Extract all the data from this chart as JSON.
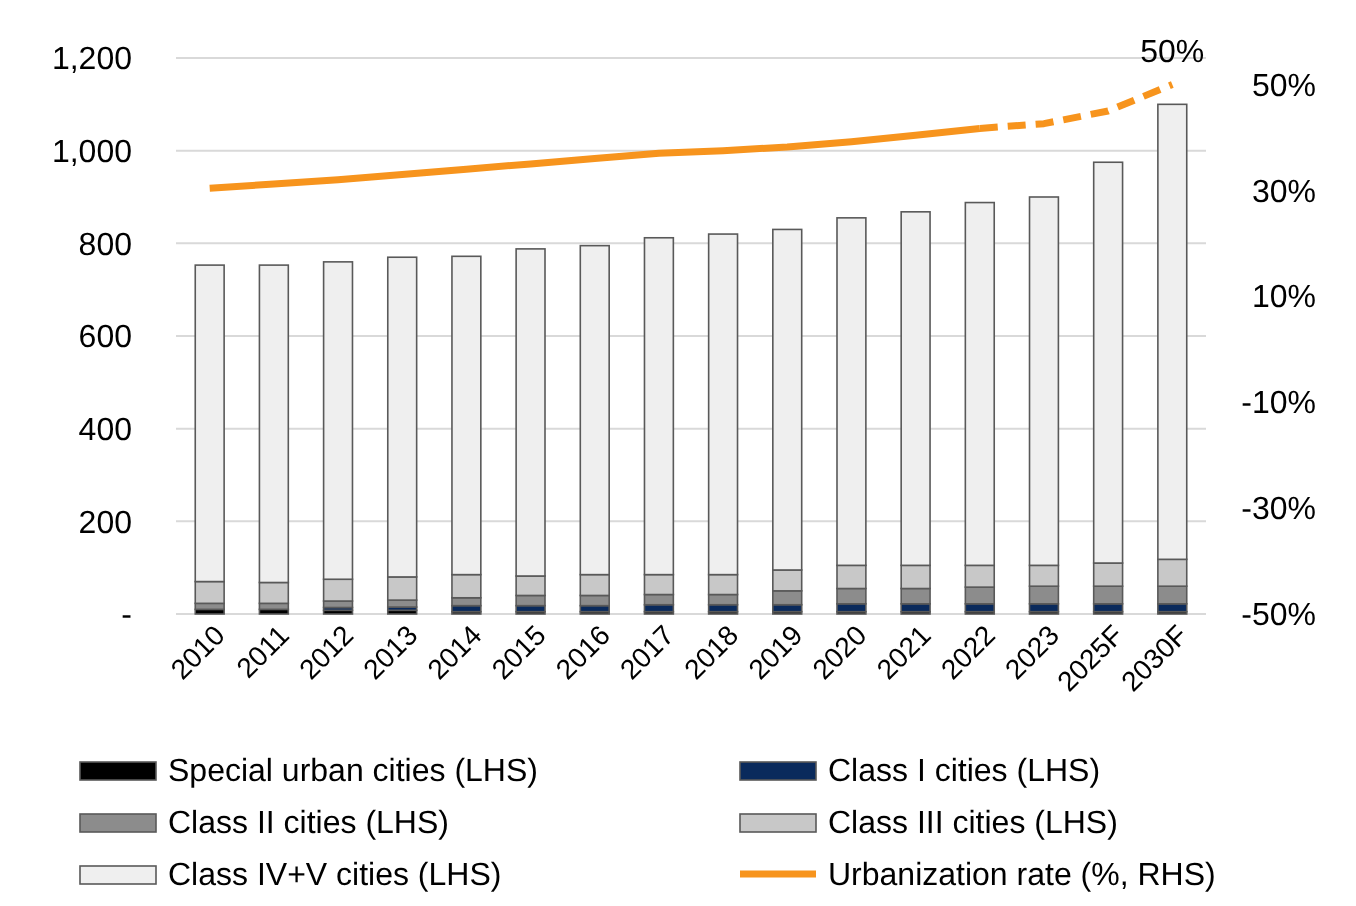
{
  "chart_data": {
    "type": "bar",
    "stacked": true,
    "categories": [
      "2010",
      "2011",
      "2012",
      "2013",
      "2014",
      "2015",
      "2016",
      "2017",
      "2018",
      "2019",
      "2020",
      "2021",
      "2022",
      "2023",
      "2025F",
      "2030F"
    ],
    "series": [
      {
        "name": "Special urban cities (LHS)",
        "color": "#000000",
        "values": [
          10,
          10,
          8,
          8,
          5,
          5,
          5,
          5,
          5,
          5,
          5,
          5,
          5,
          5,
          5,
          5
        ]
      },
      {
        "name": "Class I cities (LHS)",
        "color": "#0a2a5c",
        "values": [
          null,
          null,
          6,
          7,
          13,
          13,
          13,
          15,
          15,
          15,
          17,
          17,
          17,
          17,
          17,
          17
        ]
      },
      {
        "name": "Class II cities (LHS)",
        "color": "#8c8c8c",
        "values": [
          13,
          13,
          14,
          15,
          17,
          22,
          22,
          22,
          22,
          30,
          33,
          33,
          36,
          38,
          38,
          38
        ]
      },
      {
        "name": "Class III cities (LHS)",
        "color": "#c8c8c8",
        "values": [
          47,
          45,
          47,
          50,
          50,
          42,
          45,
          43,
          43,
          45,
          50,
          50,
          47,
          45,
          50,
          58
        ]
      },
      {
        "name": "Class IV+V cities (LHS)",
        "color": "#efefef",
        "values": [
          683,
          685,
          685,
          690,
          687,
          706,
          710,
          727,
          735,
          735,
          750,
          763,
          783,
          795,
          865,
          982
        ]
      },
      {
        "name": "Urbanization rate (%, RHS)",
        "type": "line",
        "axis": "y2",
        "color": "#f7941d",
        "line_style": "solid",
        "values": [
          30.4,
          31.2,
          32,
          33,
          34,
          35,
          36,
          37,
          37.5,
          38.2,
          39.2,
          40.4,
          41.7,
          null,
          null,
          null
        ]
      },
      {
        "type": "line",
        "axis": "y2",
        "color": "#f7941d",
        "line_style": "dashed",
        "values": [
          null,
          null,
          null,
          null,
          null,
          null,
          null,
          null,
          null,
          null,
          null,
          null,
          41.7,
          42.6,
          45,
          50
        ]
      }
    ],
    "ylim": [
      0,
      1200
    ],
    "yticks": [
      {
        "value": 0,
        "label": "-"
      },
      {
        "value": 200,
        "label": "200"
      },
      {
        "value": 400,
        "label": "400"
      },
      {
        "value": 600,
        "label": "600"
      },
      {
        "value": 800,
        "label": "800"
      },
      {
        "value": 1000,
        "label": "1,000"
      },
      {
        "value": 1200,
        "label": "1,200"
      }
    ],
    "y2lim": [
      -50,
      55
    ],
    "y2ticks": [
      {
        "value": -50,
        "label": "-50%"
      },
      {
        "value": -30,
        "label": "-30%"
      },
      {
        "value": -10,
        "label": "-10%"
      },
      {
        "value": 10,
        "label": "10%"
      },
      {
        "value": 30,
        "label": "30%"
      },
      {
        "value": 50,
        "label": "50%"
      }
    ],
    "annotations": [
      "50%"
    ],
    "grid": "y",
    "legend": "bottom"
  }
}
